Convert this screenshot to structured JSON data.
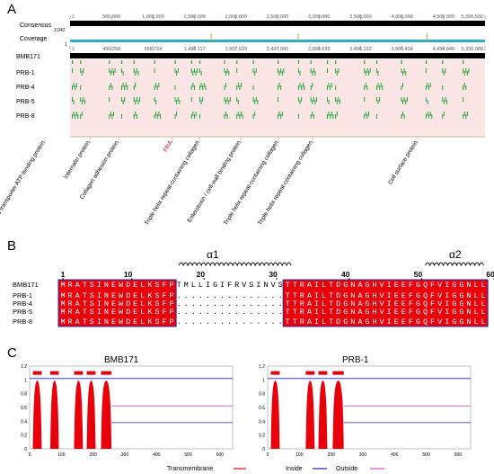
{
  "panel_a": {
    "letter": "A",
    "consensus_label": "Consensus",
    "consensus_max": "2,042",
    "coverage_label": "Coverage",
    "coverage_min": "1",
    "ruler_top": [
      "1",
      "500,000",
      "1,000,000",
      "1,500,000",
      "2,000,000",
      "2,500,000",
      "3,000,000",
      "3,500,000",
      "4,000,000",
      "4,500,000",
      "5,336,532"
    ],
    "ruler_bottom": [
      "1",
      "499,298",
      "998,724",
      "1,498,117",
      "1,997,529",
      "2,497,060",
      "2,996,639",
      "3,496,132",
      "3,995,434",
      "4,494,848",
      "5,330,088"
    ],
    "reference": "BMB171",
    "tracks": [
      "PRB-1",
      "PRB-4",
      "PRB-5",
      "PRB-8"
    ],
    "annotations": [
      {
        "text": "ABC transporter ATP-binding protein",
        "color": "#000000"
      },
      {
        "text": "Internalin protein",
        "color": "#000000"
      },
      {
        "text": "Collagen adhesion protein",
        "color": "#000000"
      },
      {
        "text": "FlhA",
        "color": "#d0021b"
      },
      {
        "text": "Triple helix repeat-containing collagen",
        "color": "#000000"
      },
      {
        "text": "Enterotoxin / cell-wall binding protein",
        "color": "#000000"
      },
      {
        "text": "Triple helix repeat-containing collagen",
        "color": "#000000"
      },
      {
        "text": "Triple helix repeat-containing collagen",
        "color": "#000000"
      },
      {
        "text": "Cell surface protein",
        "color": "#000000"
      }
    ]
  },
  "panel_b": {
    "letter": "B",
    "helix1": "α1",
    "helix2": "α2",
    "position_labels": [
      "1",
      "10",
      "20",
      "30",
      "40",
      "50",
      "60"
    ],
    "sequences": [
      {
        "name": "BMB171",
        "seq": "MRATSINEWDELKSFPTMLLIGIFRVSINVSTTRAILTDGNAGHVIEEFGQFVIGGNLL"
      },
      {
        "name": "PRB-1",
        "seq": "MRATSINEWDELKSFP...............TTRAILTDGNAGHVIEEFGQFVIGGNLL"
      },
      {
        "name": "PRB-4",
        "seq": "MRATSINEWDELKSFP...............TTRAILTDGNAGHVIEEFGQFVIGGNLL"
      },
      {
        "name": "PRB-5",
        "seq": "MRATSINEWDELKSFP...............TTRAILTDGNAGHVIEEFGQFVIGGNLL"
      },
      {
        "name": "PRB-8",
        "seq": "MRATSINEWDELKSFP...............TTRAILTDGNAGHVIEEFGQFVIGGNLL"
      }
    ]
  },
  "panel_c": {
    "letter": "C",
    "colors": {
      "transmembrane": "#e8000b",
      "inside": "#1f1fd0",
      "outside": "#e040e0"
    },
    "legend": [
      "Transmembrane",
      "Inside",
      "Outside"
    ],
    "y_ticks": [
      "0",
      "0.2",
      "0.4",
      "0.6",
      "0.8",
      "1",
      "1.2"
    ],
    "x_ticks": [
      "0",
      "100",
      "200",
      "300",
      "400",
      "500",
      "600"
    ]
  },
  "chart_data": [
    {
      "type": "area",
      "title": "BMB171",
      "xlim": [
        0,
        640
      ],
      "ylim": [
        0,
        1.2
      ],
      "tm_segments": [
        [
          10,
          38
        ],
        [
          65,
          92
        ],
        [
          140,
          168
        ],
        [
          180,
          208
        ],
        [
          225,
          258
        ]
      ],
      "inside_level": 1.02,
      "outside_level_after": 0.45
    },
    {
      "type": "area",
      "title": "PRB-1",
      "xlim": [
        0,
        640
      ],
      "ylim": [
        0,
        1.2
      ],
      "tm_segments": [
        [
          10,
          38
        ],
        [
          120,
          148
        ],
        [
          160,
          188
        ],
        [
          205,
          240
        ]
      ],
      "inside_level": 1.02,
      "outside_level_after": 0.45
    }
  ]
}
